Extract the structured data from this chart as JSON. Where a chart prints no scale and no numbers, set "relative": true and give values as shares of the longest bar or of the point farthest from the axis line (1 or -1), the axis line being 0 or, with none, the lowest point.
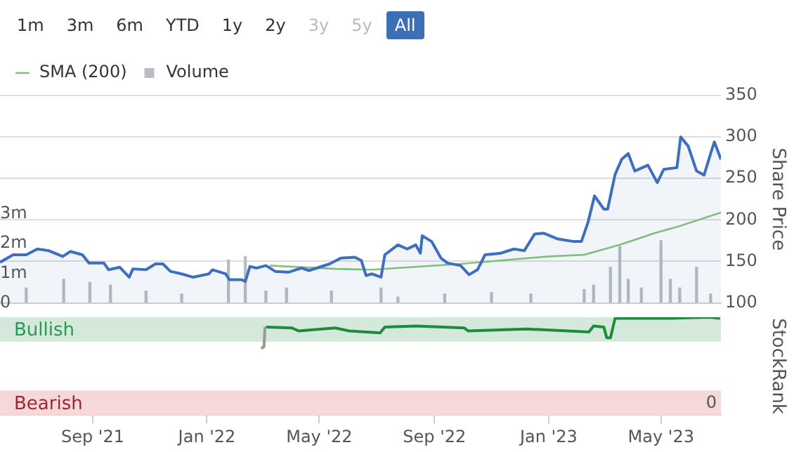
{
  "chart_data": [
    {
      "type": "area",
      "annotations": [
        "1m",
        "3m",
        "6m",
        "YTD",
        "1y",
        "2y",
        "3y",
        "5y",
        "All"
      ],
      "ylabel": "Share Price",
      "xlim": [
        "2021-05-25",
        "2023-07-04"
      ],
      "ylim": [
        100,
        350
      ],
      "yticks": [
        100,
        150,
        200,
        250,
        300,
        350
      ],
      "y2lim": [
        0,
        7
      ],
      "y2ticks": [
        0,
        {
          "value": 1,
          "label": "1m"
        },
        {
          "value": 2,
          "label": "2m"
        },
        {
          "value": 3,
          "label": "3m"
        }
      ],
      "tick_labels": "y",
      "grid": "y",
      "legend": "top left",
      "marker": "none",
      "series": [
        {
          "color": "#3e6fbf",
          "x": [
            "2021-05-25",
            "2021-06-08",
            "2021-06-22",
            "2021-07-04",
            "2021-07-16",
            "2021-07-31",
            "2021-08-08",
            "2021-08-21",
            "2021-08-28",
            "2021-09-13",
            "2021-09-18",
            "2021-09-30",
            "2021-10-10",
            "2021-10-14",
            "2021-10-28",
            "2021-11-07",
            "2021-11-15",
            "2021-11-23",
            "2021-12-05",
            "2021-12-17",
            "2022-01-03",
            "2022-01-07",
            "2022-01-21",
            "2022-01-25",
            "2022-02-07",
            "2022-02-11",
            "2022-02-16",
            "2022-02-23",
            "2022-03-05",
            "2022-03-15",
            "2022-03-29",
            "2022-04-12",
            "2022-04-20",
            "2022-05-12",
            "2022-05-24",
            "2022-06-08",
            "2022-06-15",
            "2022-06-20",
            "2022-06-26",
            "2022-07-06",
            "2022-07-10",
            "2022-07-24",
            "2022-08-03",
            "2022-08-12",
            "2022-08-17",
            "2022-08-19",
            "2022-08-29",
            "2022-09-08",
            "2022-09-15",
            "2022-09-29",
            "2022-10-08",
            "2022-10-17",
            "2022-10-25",
            "2022-11-11",
            "2022-11-25",
            "2022-12-06",
            "2022-12-17",
            "2022-12-27",
            "2023-01-11",
            "2023-01-28",
            "2023-02-05",
            "2023-02-12",
            "2023-02-19",
            "2023-03-01",
            "2023-03-05",
            "2023-03-13",
            "2023-03-20",
            "2023-03-27",
            "2023-04-03",
            "2023-04-17",
            "2023-04-27",
            "2023-05-04",
            "2023-05-18",
            "2023-05-22",
            "2023-05-30",
            "2023-06-08",
            "2023-06-16",
            "2023-06-23",
            "2023-06-27",
            "2023-07-04"
          ],
          "values": [
            149,
            158,
            158,
            165,
            163,
            156,
            162,
            158,
            148,
            148,
            140,
            143,
            131,
            141,
            140,
            147,
            147,
            138,
            135,
            131,
            135,
            140,
            135,
            128,
            128,
            126,
            144,
            142,
            145,
            138,
            137,
            142,
            139,
            147,
            154,
            155,
            151,
            133,
            135,
            131,
            158,
            170,
            165,
            170,
            160,
            181,
            174,
            154,
            148,
            145,
            134,
            140,
            158,
            160,
            165,
            163,
            183,
            184,
            177,
            174,
            174,
            197,
            229,
            213,
            213,
            255,
            273,
            280,
            259,
            266,
            245,
            261,
            263,
            300,
            289,
            259,
            254,
            280,
            294,
            273
          ]
        },
        {
          "type": "line",
          "name": "SMA (200)",
          "color": "#84c57c",
          "x": [
            "2022-03-09",
            "2022-05-19",
            "2022-06-26",
            "2022-09-29",
            "2023-01-01",
            "2023-02-08",
            "2023-03-18",
            "2023-04-24",
            "2023-05-22",
            "2023-07-04"
          ],
          "values": [
            145,
            141,
            140,
            147,
            156,
            158,
            170,
            184,
            193,
            209
          ]
        },
        {
          "type": "bar",
          "name": "Volume",
          "axis": "y2",
          "color": "#b9bcc3",
          "x": [
            "2021-06-22",
            "2021-08-01",
            "2021-08-29",
            "2021-09-20",
            "2021-10-28",
            "2021-12-05",
            "2022-01-24",
            "2022-02-11",
            "2022-03-05",
            "2022-03-27",
            "2022-05-14",
            "2022-07-06",
            "2022-07-24",
            "2022-09-12",
            "2022-11-01",
            "2022-12-13",
            "2023-02-08",
            "2023-02-18",
            "2023-03-08",
            "2023-03-18",
            "2023-03-27",
            "2023-04-10",
            "2023-05-01",
            "2023-05-11",
            "2023-05-21",
            "2023-06-08",
            "2023-06-23"
          ],
          "values": [
            0.5,
            0.8,
            0.7,
            0.6,
            0.4,
            0.3,
            1.45,
            1.57,
            0.4,
            0.5,
            0.4,
            0.5,
            0.2,
            0.3,
            0.35,
            0.3,
            0.45,
            0.6,
            1.2,
            1.9,
            0.8,
            0.5,
            2.1,
            0.8,
            0.5,
            1.2,
            0.3
          ]
        }
      ]
    },
    {
      "type": "line",
      "relative": true,
      "ylabel": "StockRank",
      "annotations": [
        "0"
      ],
      "xlim": [
        "2021-05-25",
        "2023-07-04"
      ],
      "xticks": [
        {
          "value": "2021-09-01",
          "label": "Sep '21"
        },
        {
          "value": "2022-01-01",
          "label": "Jan '22"
        },
        {
          "value": "2022-05-01",
          "label": "May '22"
        },
        {
          "value": "2022-09-01",
          "label": "Sep '22"
        },
        {
          "value": "2023-01-01",
          "label": "Jan '23"
        },
        {
          "value": "2023-05-01",
          "label": "May '23"
        }
      ],
      "tick_labels": "x",
      "marker": "none",
      "bands": [
        {
          "axis": "y",
          "from": 0.75,
          "to": 1.0,
          "label": "Bullish",
          "color": "#d4e9dc"
        },
        {
          "axis": "y",
          "from": 0,
          "to": 0.25,
          "label": "Bearish",
          "color": "#f6d8db"
        }
      ],
      "series": [
        {
          "color": "#999999",
          "x": [
            "2022-02-28",
            "2022-03-03",
            "2022-03-04"
          ],
          "values": [
            0.68,
            0.7,
            0.9
          ]
        },
        {
          "color": "#1e8a3c",
          "x": [
            "2022-03-05",
            "2022-04-02",
            "2022-04-09",
            "2022-05-18",
            "2022-06-02",
            "2022-07-05",
            "2022-07-10",
            "2022-08-13",
            "2022-10-03",
            "2022-10-07",
            "2022-12-08",
            "2023-02-13",
            "2023-02-18",
            "2023-03-01",
            "2023-03-04",
            "2023-03-08",
            "2023-03-13",
            "2023-05-11",
            "2023-06-20",
            "2023-07-03"
          ],
          "values": [
            0.9,
            0.89,
            0.86,
            0.89,
            0.86,
            0.84,
            0.9,
            0.91,
            0.89,
            0.86,
            0.88,
            0.85,
            0.91,
            0.9,
            0.79,
            0.79,
            0.99,
            0.99,
            1.0,
            0.99
          ]
        }
      ]
    }
  ]
}
